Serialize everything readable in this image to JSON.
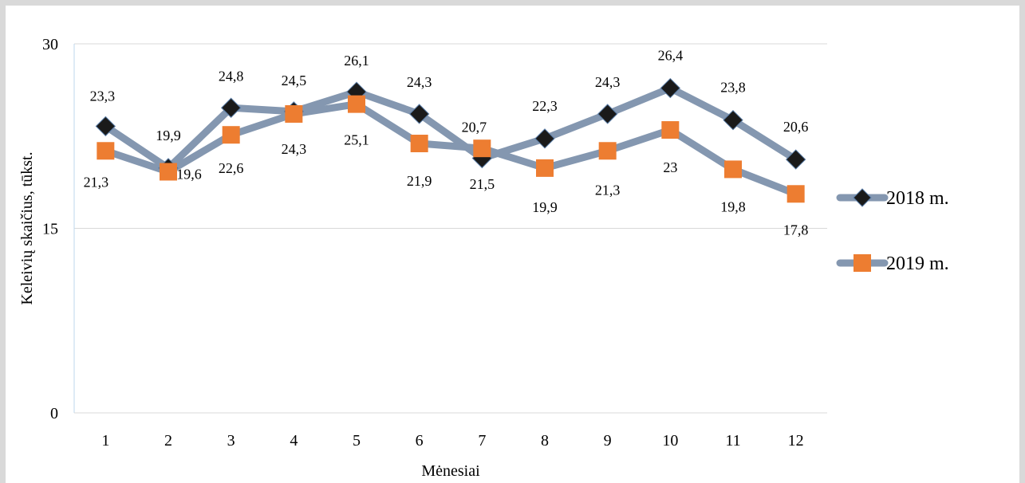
{
  "chart_data": {
    "type": "line",
    "title": "",
    "xlabel": "Mėnesiai",
    "ylabel": "Keleivių skaičius, tūkst.",
    "ylim": [
      0,
      30
    ],
    "yticks": [
      "0",
      "15",
      "30"
    ],
    "categories": [
      "1",
      "2",
      "3",
      "4",
      "5",
      "6",
      "7",
      "8",
      "9",
      "10",
      "11",
      "12"
    ],
    "grid": "horizontal",
    "legend_position": "right",
    "line_color": "#8497b0",
    "series": [
      {
        "name": "2018 m.",
        "marker": "diamond",
        "marker_color": "#1a1a1a",
        "values": [
          23.3,
          19.9,
          24.8,
          24.5,
          26.1,
          24.3,
          20.7,
          22.3,
          24.3,
          26.4,
          23.8,
          20.6
        ],
        "labels": [
          "23,3",
          "19,9",
          "24,8",
          "24,5",
          "26,1",
          "24,3",
          "20,7",
          "22,3",
          "24,3",
          "26,4",
          "23,8",
          "20,6"
        ]
      },
      {
        "name": "2019 m.",
        "marker": "square",
        "marker_color": "#ed7d31",
        "values": [
          21.3,
          19.6,
          22.6,
          24.3,
          25.1,
          21.9,
          21.5,
          19.9,
          21.3,
          23.0,
          19.8,
          17.8
        ],
        "labels": [
          "21,3",
          "19,6",
          "22,6",
          "24,3",
          "25,1",
          "21,9",
          "21,5",
          "19,9",
          "21,3",
          "23",
          "19,8",
          "17,8"
        ]
      }
    ]
  }
}
